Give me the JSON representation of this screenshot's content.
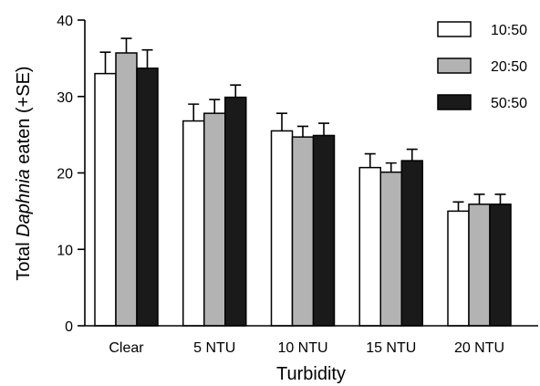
{
  "chart_data": {
    "type": "bar",
    "xlabel": "Turbidity",
    "ylabel_prefix": "Total ",
    "ylabel_italic": "Daphnia",
    "ylabel_suffix": " eaten (+SE)",
    "ylim": [
      0,
      40
    ],
    "yticks": [
      0,
      10,
      20,
      30,
      40
    ],
    "categories": [
      "Clear",
      "5 NTU",
      "10 NTU",
      "15 NTU",
      "20 NTU"
    ],
    "legend_position": "top-right",
    "series": [
      {
        "name": "10:50",
        "color": "#ffffff",
        "values": [
          33.0,
          26.8,
          25.5,
          20.7,
          15.0
        ],
        "se": [
          2.8,
          2.2,
          2.3,
          1.8,
          1.2
        ]
      },
      {
        "name": "20:50",
        "color": "#b3b3b3",
        "values": [
          35.7,
          27.8,
          24.7,
          20.1,
          15.9
        ],
        "se": [
          1.9,
          1.8,
          1.4,
          1.2,
          1.3
        ]
      },
      {
        "name": "50:50",
        "color": "#1a1a1a",
        "values": [
          33.7,
          29.9,
          24.9,
          21.6,
          15.9
        ],
        "se": [
          2.4,
          1.6,
          1.6,
          1.5,
          1.3
        ]
      }
    ]
  }
}
